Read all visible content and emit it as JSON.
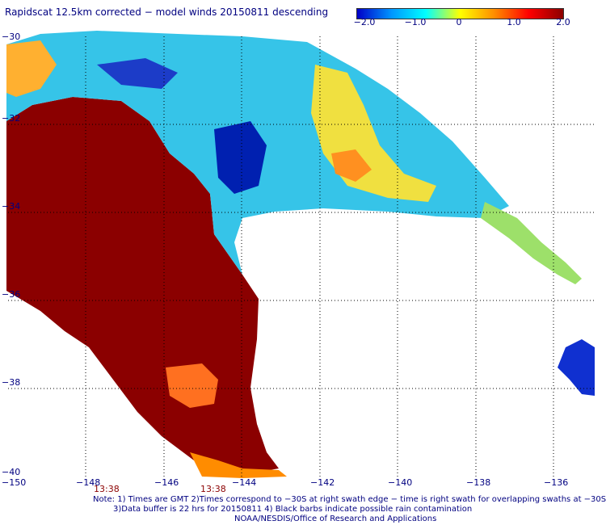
{
  "title": "Rapidscat 12.5km corrected − model winds 20150811 descending",
  "colorbar": {
    "labels": [
      "−2.0",
      "−1.0",
      "0",
      "1.0",
      "2.0"
    ],
    "colors": [
      "#0000c8",
      "#0096ff",
      "#00ffff",
      "#ffff00",
      "#ff8c00",
      "#ff0000",
      "#8b0000"
    ]
  },
  "map": {
    "x_axis_labels": [
      "−150",
      "−148",
      "−146",
      "−144",
      "−142",
      "−140",
      "−138",
      "−136"
    ],
    "y_axis_labels": [
      "−30",
      "−32",
      "−34",
      "−36",
      "−38",
      "−40"
    ],
    "time_labels": [
      "13:38",
      "13:38"
    ]
  },
  "notes": {
    "line1": "Note: 1) Times are GMT 2)Times correspond to −30S at right swath edge − time is right swath for overlapping swaths at −30S",
    "line2": "3)Data buffer is 22 hrs for 20150811 4) Black barbs indicate possible rain contamination",
    "line3": "NOAA/NESDIS/Office of Research and Applications"
  }
}
